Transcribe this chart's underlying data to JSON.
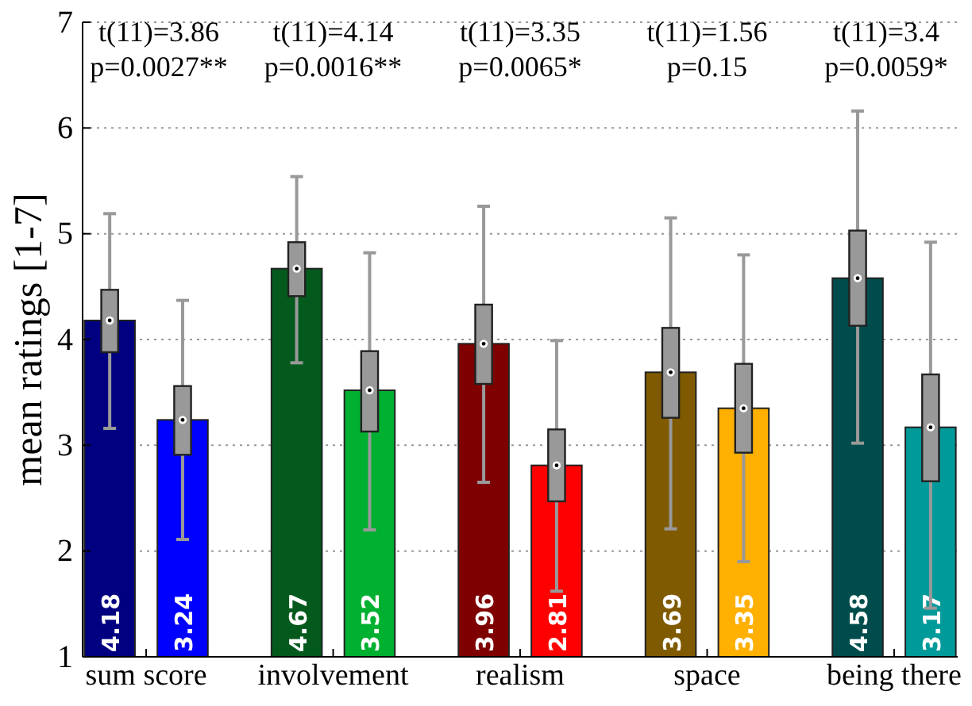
{
  "chart_data": {
    "type": "bar",
    "ylabel": "mean ratings [1-7]",
    "categories": [
      "sum score",
      "involvement",
      "realism",
      "space",
      "being there"
    ],
    "ylim": [
      1,
      7
    ],
    "yticks": [
      1,
      2,
      3,
      4,
      5,
      6,
      7
    ],
    "grid": "y",
    "data_labels": true,
    "series": [
      {
        "colors": [
          "#000080",
          "#045a1c",
          "#7f0000",
          "#7f5a00",
          "#004c4c"
        ],
        "values": [
          4.18,
          4.67,
          3.96,
          3.69,
          4.58
        ]
      },
      {
        "colors": [
          "#0000ff",
          "#00b030",
          "#ff0000",
          "#ffb000",
          "#009a9a"
        ],
        "values": [
          3.24,
          3.52,
          2.81,
          3.35,
          3.17
        ]
      },
      {
        "type": "box",
        "color": "#999999",
        "boxes": [
          {
            "low": 3.16,
            "q1": 3.88,
            "median": 4.18,
            "q3": 4.47,
            "high": 5.19
          },
          {
            "low": 3.78,
            "q1": 4.41,
            "median": 4.67,
            "q3": 4.92,
            "high": 5.54
          },
          {
            "low": 2.65,
            "q1": 3.58,
            "median": 3.96,
            "q3": 4.33,
            "high": 5.26
          },
          {
            "low": 2.21,
            "q1": 3.26,
            "median": 3.69,
            "q3": 4.11,
            "high": 5.15
          },
          {
            "low": 3.02,
            "q1": 4.13,
            "median": 4.58,
            "q3": 5.03,
            "high": 6.16
          }
        ]
      },
      {
        "type": "box",
        "color": "#999999",
        "boxes": [
          {
            "low": 2.11,
            "q1": 2.91,
            "median": 3.24,
            "q3": 3.56,
            "high": 4.37
          },
          {
            "low": 2.2,
            "q1": 3.13,
            "median": 3.52,
            "q3": 3.89,
            "high": 4.82
          },
          {
            "low": 1.62,
            "q1": 2.47,
            "median": 2.81,
            "q3": 3.15,
            "high": 3.99
          },
          {
            "low": 1.9,
            "q1": 2.93,
            "median": 3.35,
            "q3": 3.77,
            "high": 4.8
          },
          {
            "low": 1.46,
            "q1": 2.66,
            "median": 3.17,
            "q3": 3.67,
            "high": 4.92
          }
        ]
      }
    ],
    "annotations": [
      "t(11)=3.86\np=0.0027**",
      "t(11)=4.14\np=0.0016**",
      "t(11)=3.35\np=0.0065*",
      "t(11)=1.56\np=0.15",
      "t(11)=3.4\np=0.0059*"
    ]
  }
}
